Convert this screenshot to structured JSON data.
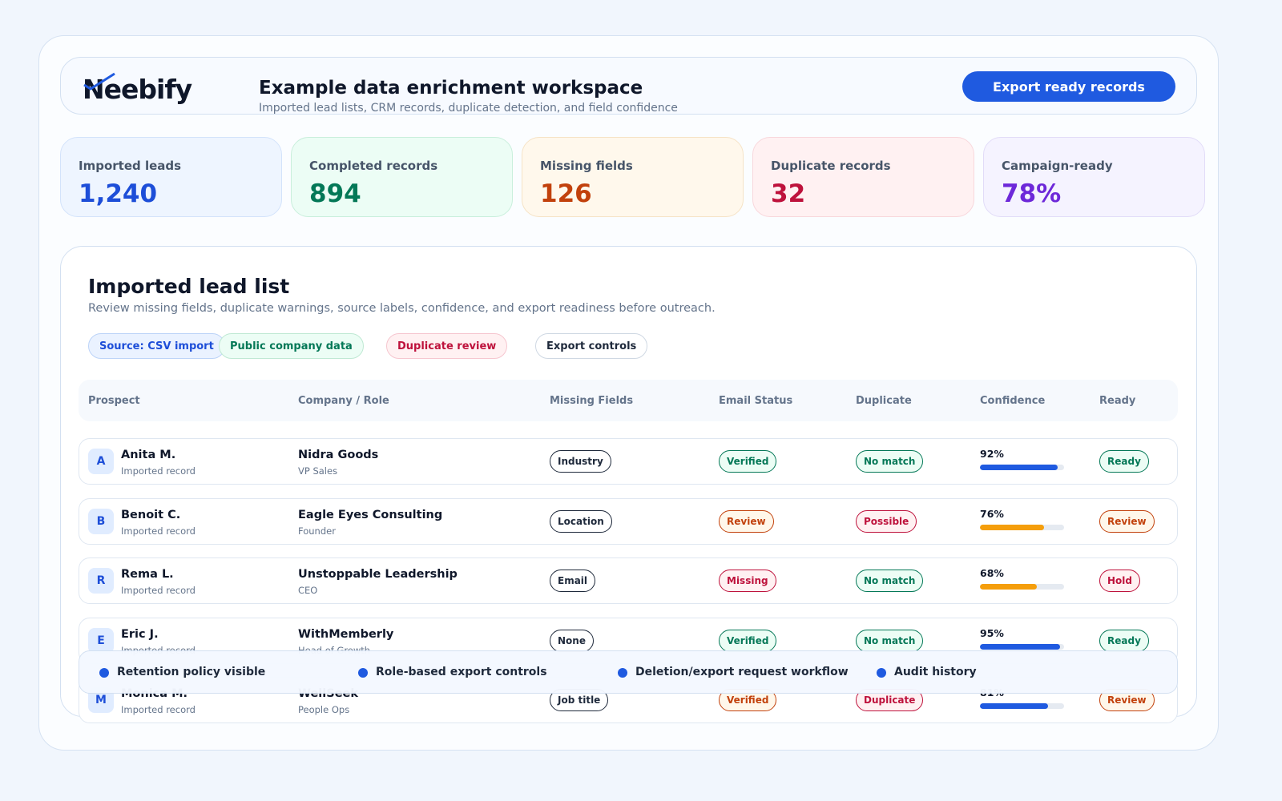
{
  "header": {
    "logo": "Neebify",
    "title": "Example data enrichment workspace",
    "subtitle": "Imported lead lists, CRM records, duplicate detection, and field confidence",
    "button": "Export ready records"
  },
  "stats": [
    {
      "label": "Imported leads",
      "value": "1,240",
      "color": "#1d4ed8",
      "bg": "#eef5ff",
      "border": "#d3e3fb"
    },
    {
      "label": "Completed records",
      "value": "894",
      "color": "#047857",
      "bg": "#ecfdf5",
      "border": "#c9efdc"
    },
    {
      "label": "Missing fields",
      "value": "126",
      "color": "#c2410c",
      "bg": "#fff8ec",
      "border": "#f6e3c6"
    },
    {
      "label": "Duplicate records",
      "value": "32",
      "color": "#be123c",
      "bg": "#fff1f2",
      "border": "#f8d7dc"
    },
    {
      "label": "Campaign-ready",
      "value": "78%",
      "color": "#6d28d9",
      "bg": "#f5f3ff",
      "border": "#e2dcf8"
    }
  ],
  "table": {
    "title": "Imported lead list",
    "subtitle": "Review missing fields, duplicate warnings, source labels, confidence, and export readiness before outreach.",
    "chips": [
      {
        "text": "Source: CSV import",
        "tone": "blue"
      },
      {
        "text": "Public company data",
        "tone": "green"
      },
      {
        "text": "Duplicate review",
        "tone": "red"
      },
      {
        "text": "Export controls",
        "tone": "gray"
      }
    ],
    "columns": [
      "Prospect",
      "Company / Role",
      "Missing Fields",
      "Email Status",
      "Duplicate",
      "Confidence",
      "Ready"
    ],
    "rows": [
      {
        "initial": "A",
        "name": "Anita M.",
        "source": "Imported record",
        "company": "Nidra Goods",
        "role": "VP Sales",
        "missing": "Industry",
        "email": {
          "text": "Verified",
          "tone": "green"
        },
        "duplicate": {
          "text": "No match",
          "tone": "green"
        },
        "confidence": {
          "value": 92,
          "label": "92%",
          "color": "#1f5ae0"
        },
        "ready": {
          "text": "Ready",
          "tone": "green"
        }
      },
      {
        "initial": "B",
        "name": "Benoit C.",
        "source": "Imported record",
        "company": "Eagle Eyes Consulting",
        "role": "Founder",
        "missing": "Location",
        "email": {
          "text": "Review",
          "tone": "orange"
        },
        "duplicate": {
          "text": "Possible",
          "tone": "red"
        },
        "confidence": {
          "value": 76,
          "label": "76%",
          "color": "#f59e0b"
        },
        "ready": {
          "text": "Review",
          "tone": "orange"
        }
      },
      {
        "initial": "R",
        "name": "Rema L.",
        "source": "Imported record",
        "company": "Unstoppable Leadership",
        "role": "CEO",
        "missing": "Email",
        "email": {
          "text": "Missing",
          "tone": "red"
        },
        "duplicate": {
          "text": "No match",
          "tone": "green"
        },
        "confidence": {
          "value": 68,
          "label": "68%",
          "color": "#f59e0b"
        },
        "ready": {
          "text": "Hold",
          "tone": "red"
        }
      },
      {
        "initial": "E",
        "name": "Eric J.",
        "source": "Imported record",
        "company": "WithMemberly",
        "role": "Head of Growth",
        "missing": "None",
        "email": {
          "text": "Verified",
          "tone": "green"
        },
        "duplicate": {
          "text": "No match",
          "tone": "green"
        },
        "confidence": {
          "value": 95,
          "label": "95%",
          "color": "#1f5ae0"
        },
        "ready": {
          "text": "Ready",
          "tone": "green"
        }
      },
      {
        "initial": "M",
        "name": "Monica M.",
        "source": "Imported record",
        "company": "WellSeek",
        "role": "People Ops",
        "missing": "Job title",
        "email": {
          "text": "Verified",
          "tone": "orange"
        },
        "duplicate": {
          "text": "Duplicate",
          "tone": "red"
        },
        "confidence": {
          "value": 81,
          "label": "81%",
          "color": "#1f5ae0"
        },
        "ready": {
          "text": "Review",
          "tone": "orange"
        }
      }
    ]
  },
  "footer": [
    "Retention policy visible",
    "Role-based export controls",
    "Deletion/export request workflow",
    "Audit history"
  ]
}
